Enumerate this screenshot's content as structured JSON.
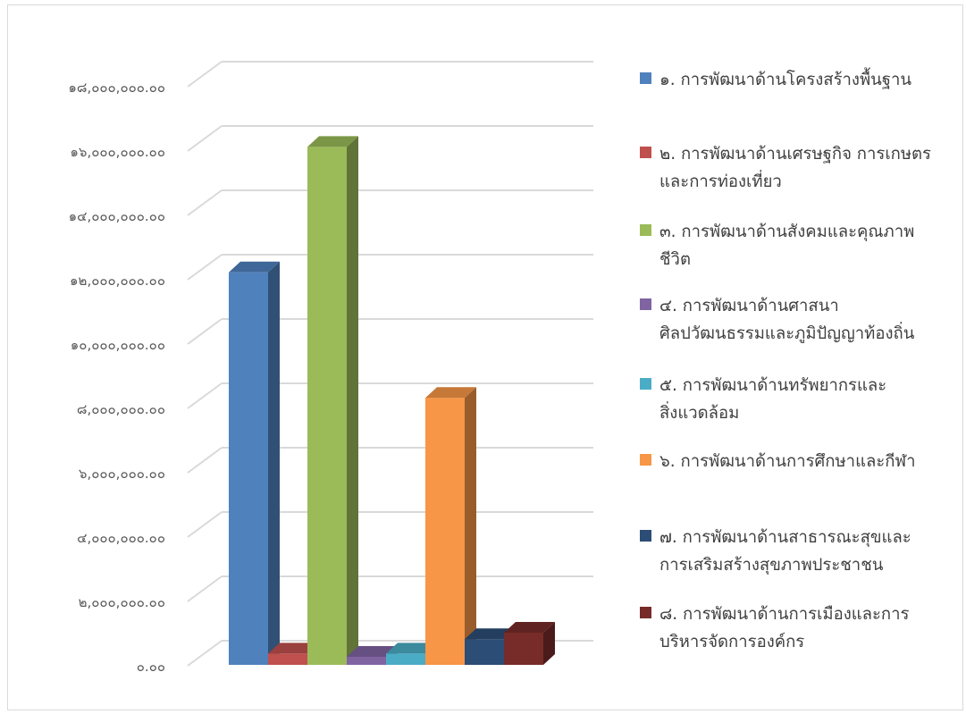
{
  "chart_data": {
    "type": "bar",
    "categories": [
      "๑. การพัฒนาด้านโครงสร้างพื้นฐาน",
      "๒. การพัฒนาด้านเศรษฐกิจ การเกษตร\nและการท่องเที่ยว",
      "๓. การพัฒนาด้านสังคมและคุณภาพ\nชีวิต",
      "๔. การพัฒนาด้านศาสนา\nศิลปวัฒนธรรมและภูมิปัญญาท้องถิ่น",
      "๕. การพัฒนาด้านทรัพยากรและ\nสิ่งแวดล้อม",
      "๖. การพัฒนาด้านการศึกษาและกีฬา",
      "๗. การพัฒนาด้านสาธารณะสุขและ\nการเสริมสร้างสุขภาพประชาชน",
      "๘. การพัฒนาด้านการเมืองและการ\nบริหารจัดการองค์กร"
    ],
    "values": [
      12200000,
      350000,
      16100000,
      250000,
      350000,
      8300000,
      800000,
      1000000
    ],
    "colors": [
      "#4f81bd",
      "#c0504d",
      "#9bbb59",
      "#8064a2",
      "#4bacc6",
      "#f79646",
      "#2c4d75",
      "#772c2a"
    ],
    "ylim": [
      0,
      18000000
    ],
    "yticks": [
      0,
      2000000,
      4000000,
      6000000,
      8000000,
      10000000,
      12000000,
      14000000,
      16000000,
      18000000
    ],
    "ytick_labels": [
      "๐.๐๐",
      "๒,๐๐๐,๐๐๐.๐๐",
      "๔,๐๐๐,๐๐๐.๐๐",
      "๖,๐๐๐,๐๐๐.๐๐",
      "๘,๐๐๐,๐๐๐.๐๐",
      "๑๐,๐๐๐,๐๐๐.๐๐",
      "๑๒,๐๐๐,๐๐๐.๐๐",
      "๑๔,๐๐๐,๐๐๐.๐๐",
      "๑๖,๐๐๐,๐๐๐.๐๐",
      "๑๘,๐๐๐,๐๐๐.๐๐"
    ],
    "grid": true,
    "legend_position": "right",
    "style": "3d-clustered-column",
    "title": "",
    "xlabel": "",
    "ylabel": ""
  }
}
